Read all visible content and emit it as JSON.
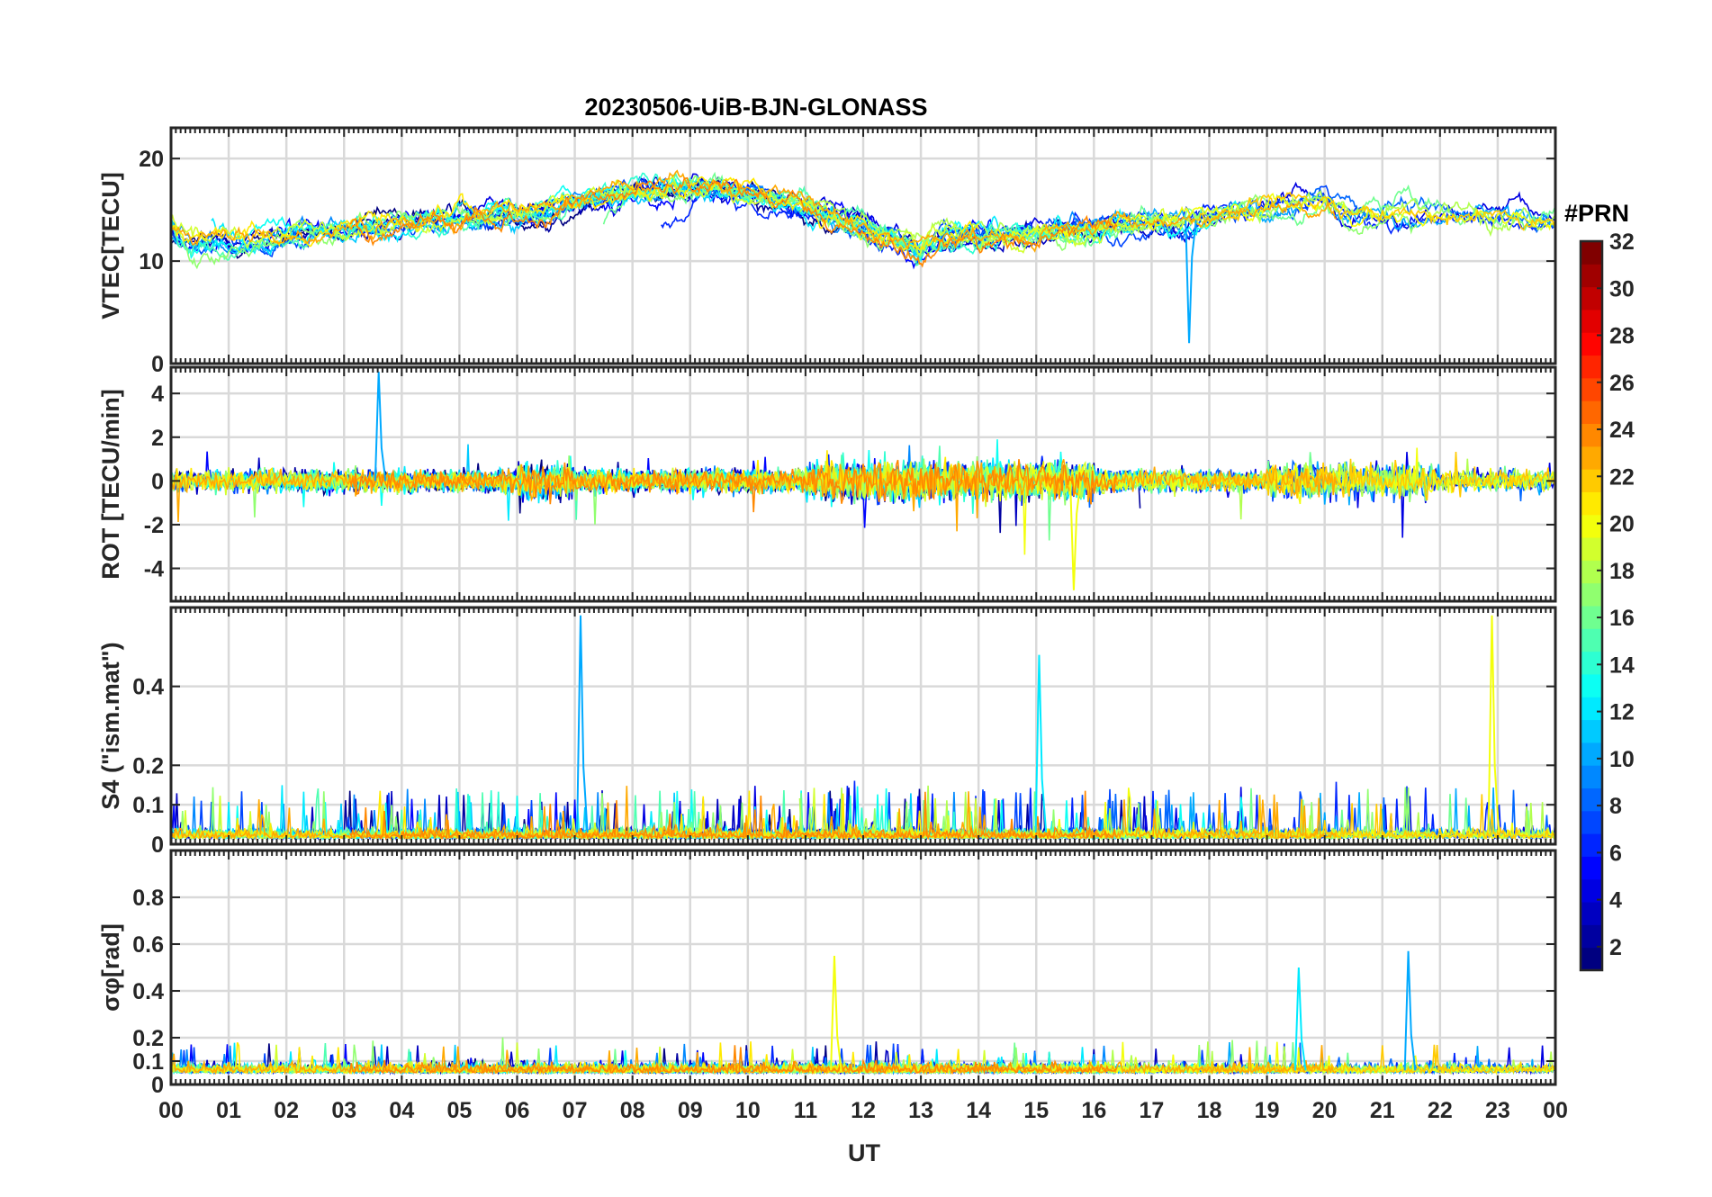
{
  "chart_data": {
    "type": "line",
    "title": "20230506-UiB-BJN-GLONASS",
    "xlabel": "UT",
    "x_tick_labels": [
      "00",
      "01",
      "02",
      "03",
      "04",
      "05",
      "06",
      "07",
      "08",
      "09",
      "10",
      "11",
      "12",
      "13",
      "14",
      "15",
      "16",
      "17",
      "18",
      "19",
      "20",
      "21",
      "22",
      "23",
      "00"
    ],
    "xlim": [
      0,
      24
    ],
    "grid": true,
    "panels": [
      {
        "id": "vtec",
        "ylabel": "VTEC[TECU]",
        "ylim": [
          0,
          23
        ],
        "yticks": [
          0,
          10,
          20
        ],
        "ytick_labels": [
          "0",
          "10",
          "20"
        ]
      },
      {
        "id": "rot",
        "ylabel": "ROT [TECU/min]",
        "ylim": [
          -5.5,
          5.2
        ],
        "yticks": [
          -4,
          -2,
          0,
          2,
          4
        ],
        "ytick_labels": [
          "-4",
          "-2",
          "0",
          "2",
          "4"
        ]
      },
      {
        "id": "s4",
        "ylabel": "S4 (\"ism.mat\")",
        "ylim": [
          0,
          0.6
        ],
        "yticks": [
          0,
          0.1,
          0.2,
          0.4
        ],
        "ytick_labels": [
          "0",
          "0.1",
          "0.2",
          "0.4"
        ]
      },
      {
        "id": "sigma",
        "ylabel": "σφ[rad]",
        "ylim": [
          0,
          1
        ],
        "yticks": [
          0,
          0.1,
          0.2,
          0.4,
          0.6,
          0.8
        ],
        "ytick_labels": [
          "0",
          "0.1",
          "0.2",
          "0.4",
          "0.6",
          "0.8"
        ]
      }
    ],
    "colorbar": {
      "title": "#PRN",
      "range": [
        1,
        32
      ],
      "tick_labels": [
        "2",
        "4",
        "6",
        "8",
        "10",
        "12",
        "14",
        "16",
        "18",
        "20",
        "22",
        "24",
        "26",
        "28",
        "30",
        "32"
      ],
      "colormap": "jet"
    },
    "series_note": "Time series for multiple GLONASS PRNs, colored by PRN number",
    "notable_peaks": [
      {
        "panel": "vtec",
        "x": 17.65,
        "y": 2
      },
      {
        "panel": "rot",
        "x": 3.6,
        "y": 5.0
      },
      {
        "panel": "rot",
        "x": 15.65,
        "y": -5.0
      },
      {
        "panel": "s4",
        "x": 7.1,
        "y": 0.58
      },
      {
        "panel": "s4",
        "x": 22.9,
        "y": 0.58
      },
      {
        "panel": "s4",
        "x": 15.05,
        "y": 0.48
      },
      {
        "panel": "sigma",
        "x": 21.45,
        "y": 0.57
      },
      {
        "panel": "sigma",
        "x": 11.5,
        "y": 0.55
      },
      {
        "panel": "sigma",
        "x": 19.55,
        "y": 0.5
      }
    ]
  }
}
